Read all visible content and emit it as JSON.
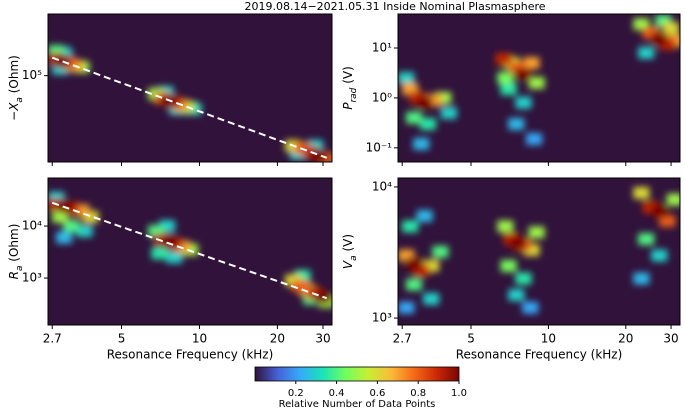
{
  "figure": {
    "title": "2019.08.14−2021.05.31  Inside Nominal Plasmasphere",
    "colorbar": {
      "label": "Relative Number of Data Points",
      "lim": [
        0,
        1
      ],
      "ticks": [
        0.2,
        0.4,
        0.6,
        0.8,
        {
          "value": 1,
          "label": "1.0"
        }
      ],
      "colormap": [
        "#30123b",
        "#4662d7",
        "#36aaf9",
        "#1ae4b6",
        "#72fe5e",
        "#c7ef34",
        "#fabb39",
        "#f66b19",
        "#cb2a04",
        "#7a0403"
      ]
    }
  },
  "chart_data": [
    {
      "type": "heatmap",
      "xlog": true,
      "ylog": true,
      "xlim": [
        2.6,
        32.5
      ],
      "xticks": [
        2.7,
        5,
        10,
        20,
        30
      ],
      "xticklabels": false,
      "ylim": [
        10500,
        500000
      ],
      "yticks": [
        {
          "value": 100000,
          "label": "10⁵"
        }
      ],
      "ylabel": [
        "−X",
        "a",
        " (Ohm)"
      ],
      "cells": {
        "x": [
          2.8,
          2.95,
          3.1,
          3.3,
          3.5,
          2.8,
          3.0,
          2.9,
          6.8,
          7.2,
          7.6,
          8.0,
          8.5,
          9.0,
          9.5,
          7.4,
          8.2,
          23,
          25,
          27,
          29,
          31,
          24,
          28
        ],
        "y": [
          155000,
          145000,
          140000,
          130000,
          125000,
          190000,
          180000,
          120000,
          62000,
          56000,
          52000,
          50000,
          46000,
          44000,
          42000,
          65000,
          42000,
          16000,
          15000,
          13500,
          12500,
          11500,
          13000,
          16000
        ],
        "values": [
          0.9,
          1.0,
          0.8,
          0.7,
          0.5,
          0.4,
          0.3,
          0.3,
          0.5,
          0.8,
          1.0,
          0.9,
          0.7,
          0.5,
          0.3,
          0.3,
          0.3,
          0.6,
          0.8,
          0.9,
          1.0,
          0.8,
          0.3,
          0.3
        ]
      },
      "fit": {
        "x": [
          2.7,
          31
        ],
        "y": [
          160000,
          11700
        ],
        "color": "#ffffff"
      }
    },
    {
      "type": "heatmap",
      "xlog": true,
      "ylog": true,
      "xlim": [
        2.6,
        32.5
      ],
      "xticks": [
        2.7,
        5,
        10,
        20,
        30
      ],
      "xticklabels": false,
      "ylim": [
        0.052,
        48
      ],
      "yticks": [
        {
          "value": 10,
          "label": "10¹"
        },
        {
          "value": 1,
          "label": "10⁰"
        },
        {
          "value": 0.1,
          "label": "10⁻¹"
        }
      ],
      "ylabel": [
        "P",
        "rad",
        " (V)"
      ],
      "cells": {
        "x": [
          2.9,
          3.1,
          3.3,
          3.6,
          3.9,
          3.0,
          3.4,
          3.2,
          2.8,
          4.1,
          6.7,
          7.2,
          7.6,
          8.0,
          8.6,
          9.0,
          7.0,
          8.0,
          7.5,
          8.8,
          6.8,
          23,
          25,
          27,
          29,
          31,
          24,
          28,
          30
        ],
        "y": [
          1.5,
          1.0,
          0.8,
          0.9,
          1.0,
          0.4,
          0.3,
          0.12,
          2.5,
          0.5,
          6,
          5,
          4,
          3,
          5,
          2,
          1.5,
          0.8,
          0.3,
          0.15,
          2.5,
          30,
          20,
          15,
          12,
          14,
          8,
          35,
          25
        ],
        "values": [
          0.7,
          0.9,
          1.0,
          0.7,
          0.5,
          0.4,
          0.35,
          0.25,
          0.3,
          0.3,
          0.9,
          0.6,
          0.8,
          1.0,
          0.7,
          0.5,
          0.35,
          0.3,
          0.25,
          0.22,
          0.45,
          0.5,
          0.8,
          1.0,
          0.9,
          0.7,
          0.3,
          0.4,
          0.6
        ]
      }
    },
    {
      "type": "heatmap",
      "xlog": true,
      "ylog": true,
      "xlim": [
        2.6,
        32.5
      ],
      "xticks": [
        2.7,
        5,
        10,
        20,
        30
      ],
      "xticklabels": true,
      "xlabel": "Resonance Frequency (kHz)",
      "ylim": [
        125,
        84000
      ],
      "yticks": [
        {
          "value": 10000,
          "label": "10⁴"
        },
        {
          "value": 1000,
          "label": "10³"
        }
      ],
      "ylabel": [
        "R",
        "a",
        " (Ohm)"
      ],
      "cells": {
        "x": [
          2.8,
          3.0,
          3.2,
          3.5,
          3.8,
          2.9,
          3.2,
          3.0,
          3.6,
          2.8,
          6.8,
          7.2,
          7.6,
          8.0,
          8.6,
          9.2,
          7.0,
          8.0,
          7.5,
          23,
          24.5,
          26,
          28,
          30,
          25,
          27,
          31
        ],
        "y": [
          26000,
          24000,
          22000,
          20000,
          15000,
          15000,
          10000,
          6000,
          8000,
          35000,
          8000,
          5500,
          5000,
          4500,
          4000,
          3500,
          3000,
          2500,
          10000,
          900,
          700,
          600,
          500,
          420,
          1100,
          400,
          350
        ],
        "values": [
          0.9,
          1.0,
          0.9,
          0.7,
          0.6,
          0.5,
          0.4,
          0.25,
          0.3,
          0.3,
          0.4,
          0.9,
          1.0,
          0.9,
          0.7,
          0.5,
          0.35,
          0.3,
          0.3,
          0.6,
          0.8,
          0.7,
          0.9,
          1.0,
          0.35,
          0.4,
          0.5
        ]
      },
      "fit": {
        "x": [
          2.7,
          31
        ],
        "y": [
          28000,
          410
        ],
        "color": "#ffffff"
      }
    },
    {
      "type": "heatmap",
      "xlog": true,
      "ylog": true,
      "xlim": [
        2.6,
        32.5
      ],
      "xticks": [
        2.7,
        5,
        10,
        20,
        30
      ],
      "xticklabels": true,
      "xlabel": "Resonance Frequency (kHz)",
      "ylim": [
        885,
        11700
      ],
      "yticks": [
        {
          "value": 10000,
          "label": "10⁴"
        },
        {
          "value": 1000,
          "label": "10³"
        }
      ],
      "ylabel": [
        "V",
        "a",
        " (V)"
      ],
      "cells": {
        "x": [
          2.8,
          3.0,
          3.2,
          3.5,
          3.8,
          2.9,
          3.3,
          3.0,
          3.5,
          2.8,
          6.8,
          7.2,
          7.6,
          8.0,
          8.6,
          9.0,
          7.0,
          8.0,
          7.5,
          8.5,
          23,
          25,
          27,
          29,
          31,
          24,
          27,
          23
        ],
        "y": [
          3000,
          2600,
          2300,
          2500,
          3200,
          5000,
          6000,
          1800,
          1400,
          1200,
          5000,
          4000,
          3700,
          3600,
          3300,
          4500,
          2500,
          2000,
          1500,
          1200,
          9000,
          7000,
          6500,
          5500,
          8000,
          4000,
          3000,
          2000
        ],
        "values": [
          0.7,
          1.0,
          0.9,
          0.6,
          0.4,
          0.35,
          0.25,
          0.4,
          0.3,
          0.22,
          0.5,
          0.9,
          1.0,
          0.8,
          0.6,
          0.5,
          0.45,
          0.35,
          0.3,
          0.22,
          0.6,
          0.9,
          1.0,
          0.8,
          0.5,
          0.4,
          0.3,
          0.25
        ]
      }
    }
  ]
}
